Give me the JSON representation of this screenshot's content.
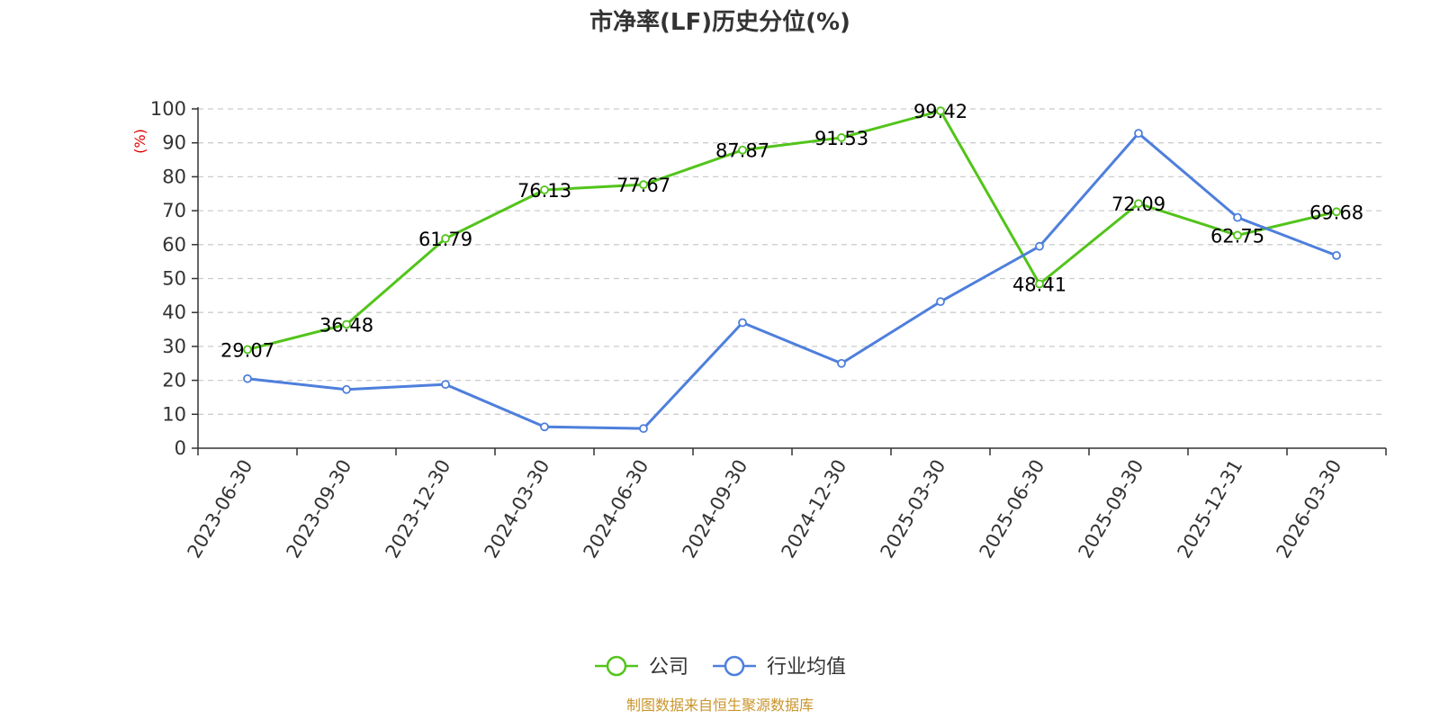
{
  "chart_data": {
    "type": "line",
    "title": "市净率(LF)历史分位(%)",
    "ylabel": "(%)",
    "xlabel": "",
    "ylim": [
      0,
      100
    ],
    "yticks": [
      0,
      10,
      20,
      30,
      40,
      50,
      60,
      70,
      80,
      90,
      100
    ],
    "grid": true,
    "legend_position": "bottom",
    "categories": [
      "2023-06-30",
      "2023-09-30",
      "2023-12-30",
      "2024-03-30",
      "2024-06-30",
      "2024-09-30",
      "2024-12-30",
      "2025-03-30",
      "2025-06-30",
      "2025-09-30",
      "2025-12-31",
      "2026-03-30"
    ],
    "series": [
      {
        "name": "公司",
        "color": "#52c41a",
        "values": [
          29.07,
          36.48,
          61.79,
          76.13,
          77.67,
          87.87,
          91.53,
          99.42,
          48.41,
          72.09,
          62.75,
          69.68
        ],
        "labels": [
          "29.07",
          "36.48",
          "61.79",
          "76.13",
          "77.67",
          "87.87",
          "91.53",
          "99.42",
          "48.41",
          "72.09",
          "62.75",
          "69.68"
        ],
        "show_labels": true
      },
      {
        "name": "行业均值",
        "color": "#4e7fdc",
        "values": [
          20.5,
          17.3,
          18.8,
          6.3,
          5.8,
          37.0,
          25.0,
          43.2,
          59.5,
          92.8,
          68.0,
          56.8
        ],
        "show_labels": false
      }
    ],
    "unit_color": "#e00000"
  },
  "source": {
    "text": "制图数据来自恒生聚源数据库",
    "color": "#c9952b"
  }
}
